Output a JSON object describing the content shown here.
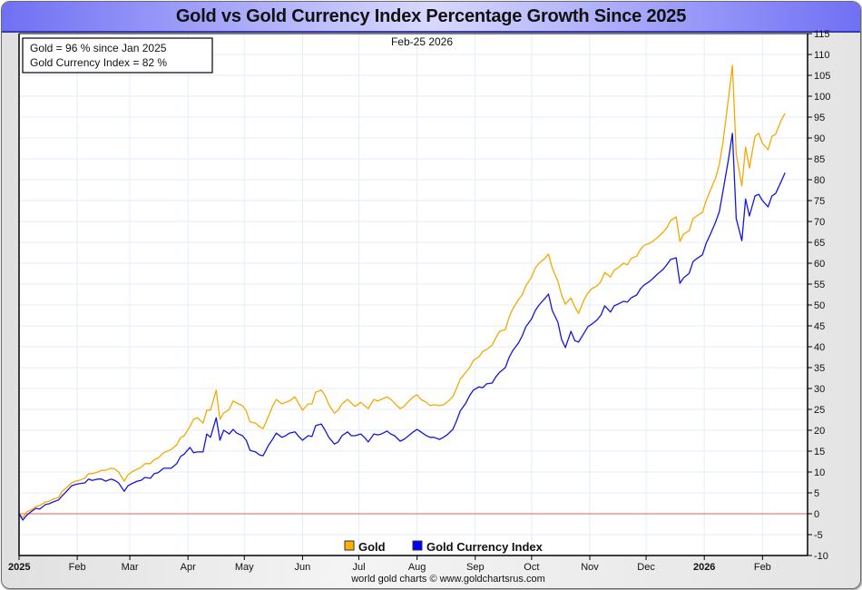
{
  "chart_data": {
    "type": "line",
    "title": "Gold vs Gold Currency Index Percentage Growth Since 2025",
    "subtitle": "Feb-25  2026",
    "annotation_box": [
      "Gold = 96 % since Jan 2025",
      "Gold Currency Index = 82 %"
    ],
    "xlabel": "",
    "ylabel": "",
    "ylim": [
      -10,
      115
    ],
    "y_ticks": [
      -10,
      -5,
      0,
      5,
      10,
      15,
      20,
      25,
      30,
      35,
      40,
      45,
      50,
      55,
      60,
      65,
      70,
      75,
      80,
      85,
      90,
      95,
      100,
      105,
      110,
      115
    ],
    "y_axis_position": "right",
    "x_range": [
      "2025-01-01",
      "2026-02-25"
    ],
    "x_ticks": [
      {
        "label": "2025",
        "bold": true,
        "day": 0
      },
      {
        "label": "Feb",
        "bold": false,
        "day": 31
      },
      {
        "label": "Mar",
        "bold": false,
        "day": 59
      },
      {
        "label": "Apr",
        "bold": false,
        "day": 90
      },
      {
        "label": "May",
        "bold": false,
        "day": 120
      },
      {
        "label": "Jun",
        "bold": false,
        "day": 151
      },
      {
        "label": "Jul",
        "bold": false,
        "day": 181
      },
      {
        "label": "Aug",
        "bold": false,
        "day": 212
      },
      {
        "label": "Sep",
        "bold": false,
        "day": 243
      },
      {
        "label": "Oct",
        "bold": false,
        "day": 273
      },
      {
        "label": "Nov",
        "bold": false,
        "day": 304
      },
      {
        "label": "Dec",
        "bold": false,
        "day": 334
      },
      {
        "label": "2026",
        "bold": true,
        "day": 365
      },
      {
        "label": "Feb",
        "bold": false,
        "day": 396
      }
    ],
    "x_max_day": 420,
    "grid": true,
    "zero_line_color": "#e06060",
    "legend_position": "bottom-center",
    "credit": "world gold charts © www.goldchartsrus.com",
    "series": [
      {
        "name": "Gold",
        "color": "#f5a800",
        "legend_color": "#ffb000",
        "x_days": [
          0,
          2,
          4,
          7,
          9,
          11,
          14,
          16,
          18,
          21,
          23,
          25,
          28,
          30,
          32,
          35,
          37,
          39,
          42,
          44,
          46,
          49,
          51,
          53,
          56,
          58,
          60,
          63,
          65,
          67,
          70,
          72,
          74,
          77,
          79,
          81,
          84,
          86,
          88,
          91,
          93,
          95,
          98,
          100,
          102,
          105,
          107,
          109,
          112,
          114,
          116,
          119,
          121,
          123,
          126,
          128,
          130,
          133,
          135,
          137,
          140,
          142,
          144,
          147,
          149,
          151,
          154,
          156,
          158,
          161,
          163,
          165,
          168,
          170,
          172,
          175,
          177,
          179,
          182,
          184,
          186,
          189,
          191,
          193,
          196,
          198,
          200,
          203,
          205,
          207,
          210,
          212,
          214,
          217,
          219,
          221,
          224,
          226,
          228,
          231,
          233,
          235,
          238,
          240,
          242,
          245,
          247,
          249,
          252,
          254,
          256,
          259,
          261,
          263,
          266,
          268,
          270,
          273,
          275,
          277,
          280,
          282,
          284,
          287,
          289,
          291,
          294,
          296,
          298,
          301,
          303,
          305,
          308,
          310,
          312,
          315,
          317,
          319,
          322,
          324,
          326,
          329,
          331,
          333,
          336,
          338,
          340,
          343,
          345,
          347,
          350,
          352,
          354,
          357,
          359,
          361,
          364,
          366,
          368,
          371,
          373,
          375,
          378,
          380,
          382,
          385,
          387,
          389,
          392,
          394,
          396,
          399,
          401,
          403,
          406,
          408,
          410,
          413,
          415,
          417,
          419
        ],
        "values": [
          0,
          -0.9,
          0.4,
          1.1,
          1.7,
          2.0,
          2.8,
          3.0,
          3.5,
          3.9,
          5.4,
          6.1,
          7.4,
          7.8,
          8.0,
          8.5,
          9.6,
          9.6,
          10.0,
          10.4,
          10.4,
          10.9,
          10.7,
          10.0,
          7.8,
          9.3,
          10.0,
          10.7,
          11.1,
          12.0,
          12.0,
          13.0,
          13.3,
          14.6,
          15.0,
          15.4,
          16.5,
          18.2,
          18.7,
          20.9,
          22.6,
          23.0,
          21.7,
          24.8,
          24.8,
          29.6,
          22.6,
          24.1,
          25.0,
          27.0,
          26.5,
          25.9,
          24.6,
          22.0,
          21.7,
          20.9,
          20.4,
          23.5,
          25.7,
          27.4,
          26.3,
          26.7,
          27.0,
          28.0,
          26.3,
          24.8,
          26.3,
          26.3,
          29.1,
          29.6,
          28.3,
          26.1,
          24.1,
          24.8,
          26.3,
          27.4,
          26.5,
          25.7,
          26.7,
          25.9,
          25.2,
          27.4,
          27.0,
          27.4,
          28.0,
          27.4,
          26.5,
          25.2,
          25.7,
          26.7,
          28.0,
          28.5,
          27.4,
          26.7,
          25.9,
          26.1,
          25.9,
          26.1,
          26.7,
          28.0,
          30.0,
          32.2,
          33.9,
          35.0,
          36.7,
          37.6,
          38.9,
          39.3,
          40.4,
          42.2,
          43.7,
          44.1,
          47.0,
          49.1,
          51.3,
          52.4,
          54.6,
          56.7,
          58.9,
          60.0,
          61.1,
          62.2,
          58.9,
          55.7,
          52.4,
          50.2,
          51.7,
          49.6,
          48.0,
          51.3,
          52.8,
          53.9,
          54.6,
          55.7,
          57.8,
          56.7,
          58.3,
          58.9,
          60.0,
          59.6,
          61.1,
          61.7,
          63.3,
          64.3,
          64.8,
          65.4,
          66.1,
          67.4,
          68.5,
          70.2,
          71.1,
          65.2,
          67.0,
          67.8,
          70.7,
          71.3,
          72.2,
          75.0,
          77.2,
          80.4,
          83.7,
          89.1,
          100.0,
          107.4,
          86.1,
          78.5,
          87.8,
          82.8,
          90.4,
          91.1,
          88.7,
          87.2,
          90.4,
          90.9,
          94.3,
          95.9
        ]
      },
      {
        "name": "Gold Currency Index",
        "color": "#1515e0",
        "legend_color": "#0000ff",
        "x_days": [
          0,
          2,
          4,
          7,
          9,
          11,
          14,
          16,
          18,
          21,
          23,
          25,
          28,
          30,
          32,
          35,
          37,
          39,
          42,
          44,
          46,
          49,
          51,
          53,
          56,
          58,
          60,
          63,
          65,
          67,
          70,
          72,
          74,
          77,
          79,
          81,
          84,
          86,
          88,
          91,
          93,
          95,
          98,
          100,
          102,
          105,
          107,
          109,
          112,
          114,
          116,
          119,
          121,
          123,
          126,
          128,
          130,
          133,
          135,
          137,
          140,
          142,
          144,
          147,
          149,
          151,
          154,
          156,
          158,
          161,
          163,
          165,
          168,
          170,
          172,
          175,
          177,
          179,
          182,
          184,
          186,
          189,
          191,
          193,
          196,
          198,
          200,
          203,
          205,
          207,
          210,
          212,
          214,
          217,
          219,
          221,
          224,
          226,
          228,
          231,
          233,
          235,
          238,
          240,
          242,
          245,
          247,
          249,
          252,
          254,
          256,
          259,
          261,
          263,
          266,
          268,
          270,
          273,
          275,
          277,
          280,
          282,
          284,
          287,
          289,
          291,
          294,
          296,
          298,
          301,
          303,
          305,
          308,
          310,
          312,
          315,
          317,
          319,
          322,
          324,
          326,
          329,
          331,
          333,
          336,
          338,
          340,
          343,
          345,
          347,
          350,
          352,
          354,
          357,
          359,
          361,
          364,
          366,
          368,
          371,
          373,
          375,
          378,
          380,
          382,
          385,
          387,
          389,
          392,
          394,
          396,
          399,
          401,
          403,
          406,
          408,
          410,
          413,
          415,
          417,
          419
        ],
        "values": [
          0,
          -1.5,
          -0.4,
          0.7,
          1.3,
          1.1,
          2.2,
          2.4,
          2.8,
          3.3,
          4.3,
          5.2,
          6.7,
          7.0,
          7.2,
          7.4,
          8.3,
          8.0,
          8.3,
          8.3,
          7.8,
          8.3,
          8.0,
          7.4,
          5.4,
          6.7,
          7.2,
          7.8,
          8.0,
          8.7,
          8.5,
          9.6,
          9.8,
          10.9,
          10.9,
          10.9,
          12.0,
          13.7,
          14.3,
          15.9,
          14.6,
          14.8,
          14.8,
          19.1,
          18.3,
          23.0,
          17.6,
          20.0,
          19.1,
          20.2,
          19.3,
          18.7,
          17.6,
          15.2,
          14.8,
          14.1,
          13.9,
          16.5,
          17.8,
          19.3,
          18.3,
          18.7,
          19.3,
          19.6,
          18.5,
          17.6,
          18.7,
          18.5,
          21.1,
          21.5,
          20.0,
          18.3,
          16.7,
          17.2,
          18.7,
          19.6,
          18.7,
          18.7,
          19.1,
          18.3,
          17.2,
          19.1,
          18.9,
          19.1,
          19.8,
          19.1,
          18.7,
          17.4,
          17.8,
          18.5,
          19.6,
          20.2,
          19.6,
          18.7,
          18.3,
          18.3,
          17.8,
          18.3,
          18.9,
          20.2,
          22.2,
          24.6,
          26.5,
          28.3,
          29.6,
          30.4,
          30.2,
          31.1,
          31.3,
          32.8,
          33.9,
          35.0,
          37.4,
          39.1,
          40.9,
          42.6,
          44.8,
          46.7,
          48.7,
          50.0,
          51.5,
          52.6,
          48.7,
          45.9,
          41.7,
          39.8,
          43.7,
          41.5,
          41.1,
          43.3,
          44.8,
          45.4,
          46.5,
          47.6,
          49.8,
          48.3,
          49.8,
          50.2,
          50.9,
          50.7,
          51.7,
          52.4,
          53.9,
          54.8,
          55.7,
          56.5,
          57.4,
          58.5,
          59.6,
          60.9,
          61.3,
          55.2,
          56.5,
          57.6,
          60.4,
          61.1,
          62.0,
          64.8,
          66.7,
          69.8,
          72.4,
          77.4,
          85.2,
          91.1,
          70.7,
          65.4,
          75.4,
          71.3,
          76.1,
          76.5,
          75.0,
          73.5,
          76.1,
          76.7,
          79.6,
          81.7
        ]
      }
    ]
  },
  "header": {
    "title": "Gold vs Gold Currency Index Percentage Growth Since 2025"
  }
}
